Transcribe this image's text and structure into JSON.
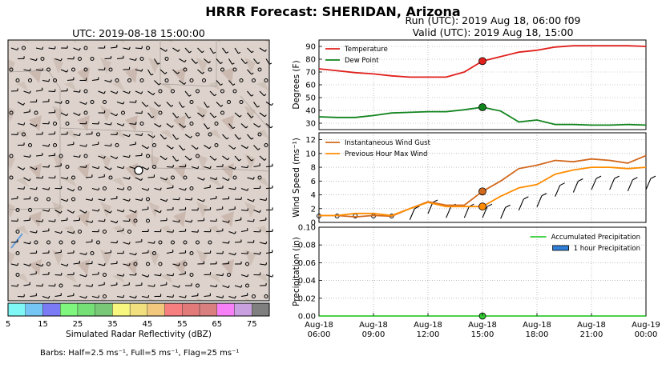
{
  "header": {
    "title": "HRRR Forecast: SHERIDAN, Arizona",
    "run": "Run (UTC): 2019 Aug 18, 06:00 f09",
    "valid": "Valid (UTC): 2019 Aug 18, 15:00"
  },
  "map": {
    "title": "UTC: 2019-08-18 15:00:00",
    "colorbar": {
      "label": "Simulated Radar Reflectivity (dBZ)",
      "ticks": [
        "5",
        "15",
        "25",
        "35",
        "45",
        "55",
        "65",
        "75"
      ],
      "colors": [
        "#7ff7f7",
        "#75c5f5",
        "#7b7bf5",
        "#7ff77f",
        "#75e075",
        "#78c878",
        "#f7f77f",
        "#f2e07f",
        "#f2c87f",
        "#f77f7f",
        "#e27a7a",
        "#d97f7f",
        "#f77ff7",
        "#c8a0e0",
        "#7f7f7f"
      ]
    },
    "note": "Barbs: Half=2.5 ms⁻¹, Full=5 ms⁻¹, Flag=25 ms⁻¹"
  },
  "chart_data": [
    {
      "type": "line",
      "x": [
        "06:00",
        "07:00",
        "08:00",
        "09:00",
        "10:00",
        "11:00",
        "12:00",
        "13:00",
        "14:00",
        "15:00",
        "16:00",
        "17:00",
        "18:00",
        "19:00",
        "20:00",
        "21:00",
        "22:00",
        "23:00",
        "00:00"
      ],
      "series": [
        {
          "name": "Temperature",
          "color": "#e0201c",
          "values": [
            72.5,
            71,
            69.5,
            68.5,
            67,
            66,
            66,
            66,
            70,
            78.5,
            82,
            85.5,
            87,
            89.5,
            90.5,
            90.5,
            90.5,
            90.5,
            90
          ]
        },
        {
          "name": "Dew Point",
          "color": "#11841d",
          "values": [
            35,
            34.5,
            34.5,
            36,
            38,
            38.5,
            39,
            39,
            40.5,
            42.5,
            39.5,
            31,
            32.5,
            29,
            29,
            28.5,
            28.5,
            29,
            28.5
          ]
        }
      ],
      "ylabel": "Degrees (F)",
      "yticks": [
        "30",
        "40",
        "50",
        "60",
        "70",
        "80",
        "90"
      ],
      "ylim": [
        25,
        95
      ],
      "marker_time": "15:00",
      "legend": "top-left",
      "grid": true
    },
    {
      "type": "line",
      "x": [
        "06:00",
        "07:00",
        "08:00",
        "09:00",
        "10:00",
        "11:00",
        "12:00",
        "13:00",
        "14:00",
        "15:00",
        "16:00",
        "17:00",
        "18:00",
        "19:00",
        "20:00",
        "21:00",
        "22:00",
        "23:00",
        "00:00"
      ],
      "series": [
        {
          "name": "Instantaneous Wind Gust",
          "color": "#d2691e",
          "values": [
            1,
            1,
            0.8,
            1,
            0.9,
            2,
            3,
            2.5,
            2.5,
            4.5,
            6,
            7.8,
            8.3,
            9,
            8.8,
            9.2,
            9,
            8.6,
            9.7
          ]
        },
        {
          "name": "Previous Hour Max Wind",
          "color": "#ff8c00",
          "values": [
            1,
            1,
            1.3,
            1.3,
            1,
            2,
            2.9,
            2.3,
            2.3,
            2.3,
            3.8,
            5,
            5.5,
            7,
            7.6,
            8,
            8,
            7.8,
            8
          ]
        }
      ],
      "ylabel": "Wind Speed (ms⁻¹)",
      "yticks": [
        "0",
        "2",
        "4",
        "6",
        "8",
        "10",
        "12"
      ],
      "ylim": [
        0,
        13
      ],
      "marker_time": "15:00",
      "legend": "top-left",
      "grid": true
    },
    {
      "type": "bar",
      "x": [
        "06:00",
        "07:00",
        "08:00",
        "09:00",
        "10:00",
        "11:00",
        "12:00",
        "13:00",
        "14:00",
        "15:00",
        "16:00",
        "17:00",
        "18:00",
        "19:00",
        "20:00",
        "21:00",
        "22:00",
        "23:00",
        "00:00"
      ],
      "series": [
        {
          "name": "Accumulated Precipitation",
          "color": "#33cc33",
          "values": [
            0,
            0,
            0,
            0,
            0,
            0,
            0,
            0,
            0,
            0,
            0,
            0,
            0,
            0,
            0,
            0,
            0,
            0,
            0
          ]
        },
        {
          "name": "1 hour Precipitation",
          "color": "#2f7ed8",
          "values": [
            0,
            0,
            0,
            0,
            0,
            0,
            0,
            0,
            0,
            0,
            0,
            0,
            0,
            0,
            0,
            0,
            0,
            0,
            0
          ]
        }
      ],
      "ylabel": "Precipitation (in)",
      "yticks": [
        "0.00",
        "0.02",
        "0.04",
        "0.06",
        "0.08",
        "0.10"
      ],
      "ylim": [
        0,
        0.1
      ],
      "xtick_labels": [
        [
          "Aug-18",
          "06:00"
        ],
        [
          "Aug-18",
          "09:00"
        ],
        [
          "Aug-18",
          "12:00"
        ],
        [
          "Aug-18",
          "15:00"
        ],
        [
          "Aug-18",
          "18:00"
        ],
        [
          "Aug-18",
          "21:00"
        ],
        [
          "Aug-19",
          "00:00"
        ]
      ],
      "legend": "top-right",
      "grid": true
    }
  ]
}
